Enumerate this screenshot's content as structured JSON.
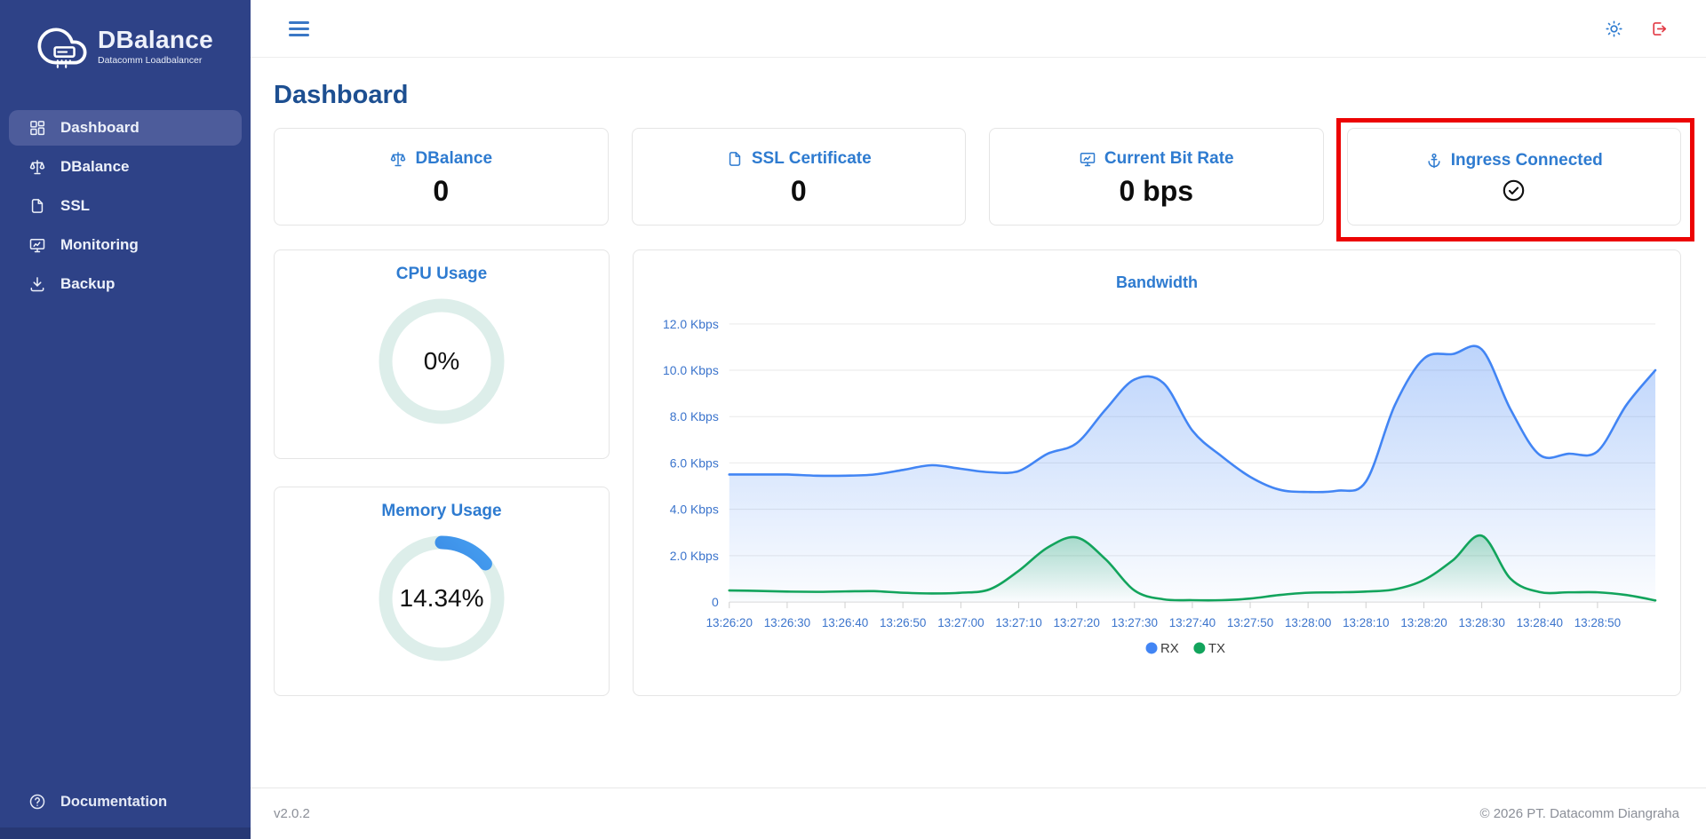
{
  "sidebar": {
    "logo_title": "DBalance",
    "logo_subtitle": "Datacomm Loadbalancer",
    "items": [
      {
        "label": "Dashboard",
        "icon": "dashboard-grid-icon",
        "active": true
      },
      {
        "label": "DBalance",
        "icon": "balance-scale-icon",
        "active": false
      },
      {
        "label": "SSL",
        "icon": "certificate-file-icon",
        "active": false
      },
      {
        "label": "Monitoring",
        "icon": "monitor-icon",
        "active": false
      },
      {
        "label": "Backup",
        "icon": "download-tray-icon",
        "active": false
      }
    ],
    "footer_item": {
      "label": "Documentation",
      "icon": "help-circle-icon"
    }
  },
  "topbar": {
    "menu_icon": "hamburger-menu-icon",
    "theme_icon": "sun-icon",
    "logout_icon": "logout-icon"
  },
  "page": {
    "title": "Dashboard"
  },
  "stat_cards": [
    {
      "title": "DBalance",
      "icon": "balance-scale-icon",
      "value": "0"
    },
    {
      "title": "SSL Certificate",
      "icon": "certificate-file-icon",
      "value": "0"
    },
    {
      "title": "Current Bit Rate",
      "icon": "monitor-icon",
      "value": "0 bps"
    },
    {
      "title": "Ingress Connected",
      "icon": "anchor-icon",
      "status_icon": "check-circle-icon",
      "highlighted": true
    }
  ],
  "gauges": [
    {
      "title": "CPU Usage",
      "value_label": "0%",
      "percent": 0,
      "ring_color": "#ddeeea",
      "arc_color": "#2e86f0"
    },
    {
      "title": "Memory Usage",
      "value_label": "14.34%",
      "percent": 14.34,
      "ring_color": "#ddeeea",
      "arc_color": "#2e86f0"
    }
  ],
  "chart_data": {
    "type": "area",
    "title": "Bandwidth",
    "xlabel": "",
    "ylabel": "",
    "ylim": [
      0,
      12.3
    ],
    "grid": true,
    "legend_position": "bottom",
    "x": [
      "13:26:20",
      "13:26:25",
      "13:26:30",
      "13:26:35",
      "13:26:40",
      "13:26:45",
      "13:26:50",
      "13:26:55",
      "13:27:00",
      "13:27:05",
      "13:27:10",
      "13:27:15",
      "13:27:20",
      "13:27:25",
      "13:27:30",
      "13:27:35",
      "13:27:40",
      "13:27:45",
      "13:27:50",
      "13:27:55",
      "13:28:00",
      "13:28:05",
      "13:28:10",
      "13:28:15",
      "13:28:20",
      "13:28:25",
      "13:28:30",
      "13:28:35",
      "13:28:40",
      "13:28:45",
      "13:28:50",
      "13:28:55",
      "13:29:00"
    ],
    "x_tick_labels": [
      "13:26:20",
      "13:26:30",
      "13:26:40",
      "13:26:50",
      "13:27:00",
      "13:27:10",
      "13:27:20",
      "13:27:30",
      "13:27:40",
      "13:27:50",
      "13:28:00",
      "13:28:10",
      "13:28:20",
      "13:28:30",
      "13:28:40",
      "13:28:50"
    ],
    "y_ticks": [
      {
        "label": "12.0 Kbps",
        "value": 12
      },
      {
        "label": "10.0 Kbps",
        "value": 10
      },
      {
        "label": "8.0 Kbps",
        "value": 8
      },
      {
        "label": "6.0 Kbps",
        "value": 6
      },
      {
        "label": "4.0 Kbps",
        "value": 4
      },
      {
        "label": "2.0 Kbps",
        "value": 2
      },
      {
        "label": "0",
        "value": 0
      }
    ],
    "series": [
      {
        "name": "RX",
        "color": "#4285f4",
        "values": [
          5.5,
          5.5,
          5.5,
          5.45,
          5.45,
          5.5,
          5.7,
          5.9,
          5.75,
          5.6,
          5.65,
          6.4,
          6.85,
          8.3,
          9.6,
          9.45,
          7.4,
          6.3,
          5.4,
          4.85,
          4.75,
          4.8,
          5.2,
          8.5,
          10.5,
          10.7,
          10.9,
          8.3,
          6.35,
          6.4,
          6.5,
          8.5,
          10.0
        ]
      },
      {
        "name": "TX",
        "color": "#12a45c",
        "values": [
          0.5,
          0.48,
          0.45,
          0.44,
          0.46,
          0.47,
          0.4,
          0.37,
          0.4,
          0.55,
          1.35,
          2.35,
          2.79,
          1.85,
          0.5,
          0.12,
          0.08,
          0.08,
          0.15,
          0.3,
          0.4,
          0.42,
          0.45,
          0.55,
          0.95,
          1.8,
          2.86,
          1.0,
          0.43,
          0.42,
          0.42,
          0.3,
          0.07
        ]
      }
    ]
  },
  "footer": {
    "version": "v2.0.2",
    "copyright": "© 2026 PT. Datacomm Diangraha"
  },
  "colors": {
    "sidebar_bg": "#2e4287",
    "sidebar_active": "#4d5c9b",
    "accent_blue": "#2e7bd0",
    "heading_blue": "#1d4f91",
    "axis_label_blue": "#3b74cc",
    "gridline": "#e9e9e9",
    "highlight_red": "#ec0404",
    "logout_red": "#e23a45"
  }
}
